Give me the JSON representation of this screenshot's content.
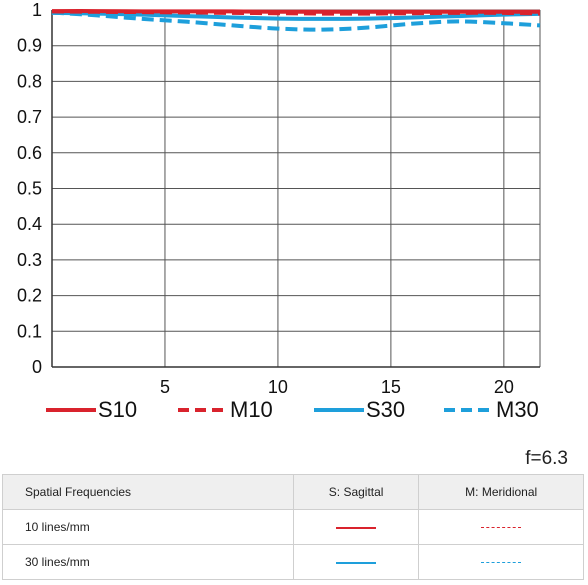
{
  "chart_data": {
    "type": "line",
    "xlim": [
      0,
      21.6
    ],
    "ylim": [
      0,
      1
    ],
    "x_ticks": [
      5,
      10,
      15,
      20
    ],
    "y_ticks": [
      0,
      0.1,
      0.2,
      0.3,
      0.4,
      0.5,
      0.6,
      0.7,
      0.8,
      0.9,
      1
    ],
    "y_tick_labels": [
      "0",
      "0.1",
      "0.2",
      "0.3",
      "0.4",
      "0.5",
      "0.6",
      "0.7",
      "0.8",
      "0.9",
      "1"
    ],
    "grid": true,
    "series": [
      {
        "name": "S10",
        "color": "#d9232d",
        "dash": false,
        "x": [
          0,
          2,
          4,
          6,
          8,
          10,
          12,
          14,
          16,
          18,
          20,
          21.6
        ],
        "y": [
          0.997,
          0.997,
          0.996,
          0.996,
          0.996,
          0.995,
          0.995,
          0.995,
          0.995,
          0.995,
          0.995,
          0.995
        ]
      },
      {
        "name": "M10",
        "color": "#d9232d",
        "dash": true,
        "x": [
          0,
          2,
          4,
          6,
          8,
          10,
          12,
          14,
          16,
          18,
          20,
          21.6
        ],
        "y": [
          0.996,
          0.995,
          0.994,
          0.993,
          0.992,
          0.991,
          0.99,
          0.99,
          0.991,
          0.992,
          0.992,
          0.99
        ]
      },
      {
        "name": "S30",
        "color": "#1e9fdb",
        "dash": false,
        "x": [
          0,
          2,
          4,
          6,
          8,
          10,
          12,
          14,
          16,
          18,
          20,
          21.6
        ],
        "y": [
          0.992,
          0.99,
          0.987,
          0.983,
          0.979,
          0.976,
          0.975,
          0.976,
          0.979,
          0.983,
          0.987,
          0.989
        ]
      },
      {
        "name": "M30",
        "color": "#1e9fdb",
        "dash": true,
        "x": [
          0,
          2,
          4,
          6,
          8,
          10,
          12,
          14,
          16,
          18,
          20,
          21.6
        ],
        "y": [
          0.993,
          0.985,
          0.975,
          0.967,
          0.957,
          0.948,
          0.945,
          0.951,
          0.962,
          0.968,
          0.963,
          0.957
        ]
      }
    ]
  },
  "aperture": "f=6.3",
  "table": {
    "headers": [
      "Spatial Frequencies",
      "S: Sagittal",
      "M: Meridional"
    ],
    "rows": [
      {
        "label": "10 lines/mm",
        "color": "#d9232d"
      },
      {
        "label": "30 lines/mm",
        "color": "#1e9fdb"
      }
    ]
  }
}
